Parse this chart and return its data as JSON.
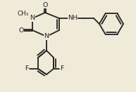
{
  "bg_color": "#f0ead8",
  "bond_color": "#222222",
  "bond_lw": 1.3,
  "font_size": 6.8,
  "font_color": "#222222",
  "figsize": [
    1.93,
    1.31
  ],
  "dpi": 100,
  "xlim": [
    0,
    193
  ],
  "ylim": [
    0,
    131
  ]
}
